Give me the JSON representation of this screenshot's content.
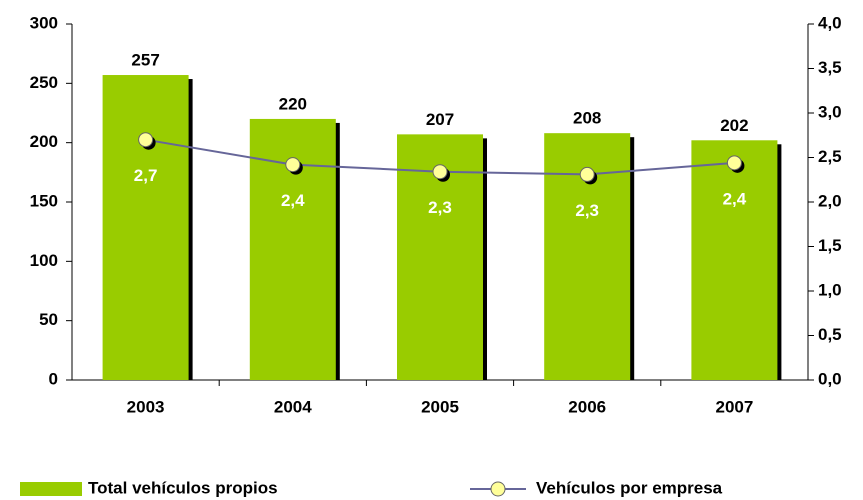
{
  "chart_data": {
    "type": "bar",
    "categories": [
      "2003",
      "2004",
      "2005",
      "2006",
      "2007"
    ],
    "series": [
      {
        "name": "Total vehículos propios",
        "type": "bar",
        "color": "#99cc00",
        "values": [
          257,
          220,
          207,
          208,
          202
        ]
      },
      {
        "name": "Vehículos por empresa",
        "type": "line",
        "axis": "y2",
        "color": "#666699",
        "marker_color": "#ffff99",
        "values": [
          2.7,
          2.42,
          2.34,
          2.31,
          2.44
        ],
        "value_labels": [
          "2,7",
          "2,4",
          "2,3",
          "2,3",
          "2,4"
        ]
      }
    ],
    "ylim": [
      0,
      300
    ],
    "yticks": [
      0,
      50,
      100,
      150,
      200,
      250,
      300
    ],
    "y2lim": [
      0,
      4
    ],
    "y2ticks": [
      {
        "value": 0,
        "label": "0,0"
      },
      {
        "value": 0.5,
        "label": "0,5"
      },
      {
        "value": 1,
        "label": "1,0"
      },
      {
        "value": 1.5,
        "label": "1,5"
      },
      {
        "value": 2,
        "label": "2,0"
      },
      {
        "value": 2.5,
        "label": "2,5"
      },
      {
        "value": 3,
        "label": "3,0"
      },
      {
        "value": 3.5,
        "label": "3,5"
      },
      {
        "value": 4,
        "label": "4,0"
      }
    ],
    "legend": "bottom"
  }
}
